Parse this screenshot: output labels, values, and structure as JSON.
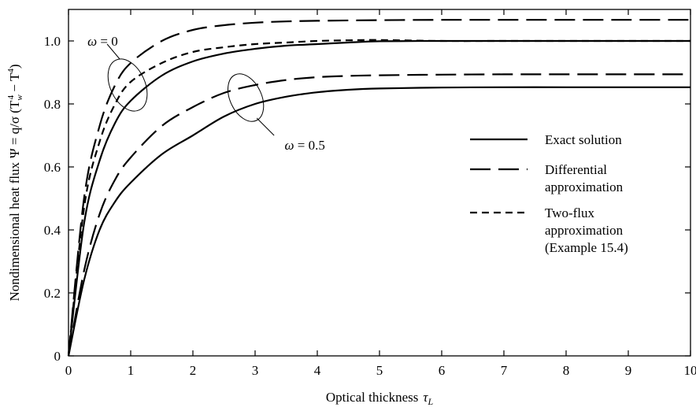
{
  "chart_data": {
    "type": "line",
    "xlabel": "Optical thickness",
    "xlabel_symbol": "τ",
    "xlabel_sub": "L",
    "ylabel_text": "Nondimensional heat flux",
    "ylabel_formula": "Ψ = q/σ (T",
    "ylabel_sub_w": "w",
    "ylabel_sup": "4",
    "ylabel_minus": " − T",
    "ylabel_close": ")",
    "xlim": [
      0,
      10
    ],
    "ylim": [
      0,
      1.1
    ],
    "x_ticks": [
      0,
      1,
      2,
      3,
      4,
      5,
      6,
      7,
      8,
      9,
      10
    ],
    "x_tick_labels": [
      "0",
      "1",
      "2",
      "3",
      "4",
      "5",
      "6",
      "7",
      "8",
      "9",
      "10"
    ],
    "y_ticks": [
      0,
      0.2,
      0.4,
      0.6,
      0.8,
      1.0
    ],
    "y_tick_labels": [
      "0",
      "0.2",
      "0.4",
      "0.6",
      "0.8",
      "1.0"
    ],
    "grid": false,
    "legend_position": "right",
    "series": [
      {
        "name": "Exact solution",
        "style": "solid",
        "group": "ω = 0",
        "x": [
          0,
          0.25,
          0.5,
          0.75,
          1,
          1.5,
          2,
          2.5,
          3,
          3.5,
          4,
          4.5,
          5,
          6,
          7,
          8,
          9,
          10
        ],
        "y": [
          0,
          0.42,
          0.62,
          0.74,
          0.81,
          0.89,
          0.935,
          0.96,
          0.975,
          0.985,
          0.99,
          0.995,
          0.999,
          1.0,
          1.0,
          1.0,
          1.0,
          1.0
        ]
      },
      {
        "name": "Differential approximation",
        "style": "long-dash",
        "group": "ω = 0",
        "x": [
          0,
          0.25,
          0.5,
          0.75,
          1,
          1.5,
          2,
          2.5,
          3,
          3.5,
          4,
          5,
          6,
          7,
          8,
          9,
          10
        ],
        "y": [
          0,
          0.5,
          0.73,
          0.86,
          0.93,
          1.0,
          1.035,
          1.05,
          1.058,
          1.062,
          1.064,
          1.066,
          1.067,
          1.067,
          1.067,
          1.067,
          1.067
        ]
      },
      {
        "name": "Two-flux approximation (Example 15.4)",
        "style": "short-dash",
        "group": "ω = 0",
        "x": [
          0,
          0.25,
          0.5,
          0.75,
          1,
          1.5,
          2,
          2.5,
          3,
          3.5,
          4,
          4.5,
          5,
          6,
          7,
          8,
          9,
          10
        ],
        "y": [
          0,
          0.47,
          0.68,
          0.8,
          0.87,
          0.93,
          0.965,
          0.98,
          0.99,
          0.995,
          1.0,
          1.002,
          1.003,
          1.0,
          1.0,
          1.0,
          1.0,
          1.0
        ]
      },
      {
        "name": "Exact solution",
        "style": "solid",
        "group": "ω = 0.5",
        "x": [
          0,
          0.25,
          0.5,
          0.75,
          1,
          1.5,
          2,
          2.5,
          3,
          3.5,
          4,
          4.5,
          5,
          6,
          7,
          8,
          9,
          10
        ],
        "y": [
          0,
          0.24,
          0.4,
          0.49,
          0.55,
          0.64,
          0.7,
          0.76,
          0.8,
          0.823,
          0.837,
          0.845,
          0.849,
          0.852,
          0.853,
          0.853,
          0.853,
          0.853
        ]
      },
      {
        "name": "Differential approximation",
        "style": "long-dash",
        "group": "ω = 0.5",
        "x": [
          0,
          0.25,
          0.5,
          0.75,
          1,
          1.5,
          2,
          2.5,
          3,
          3.5,
          4,
          4.5,
          5,
          6,
          7,
          8,
          9,
          10
        ],
        "y": [
          0,
          0.27,
          0.45,
          0.56,
          0.63,
          0.73,
          0.79,
          0.835,
          0.86,
          0.876,
          0.885,
          0.889,
          0.891,
          0.893,
          0.894,
          0.894,
          0.894,
          0.894
        ]
      }
    ],
    "legend": [
      {
        "style": "solid",
        "lines": [
          "Exact solution"
        ]
      },
      {
        "style": "long-dash",
        "lines": [
          "Differential",
          "approximation"
        ]
      },
      {
        "style": "short-dash",
        "lines": [
          "Two-flux",
          "approximation",
          "(Example 15.4)"
        ]
      }
    ],
    "annotations": [
      {
        "label": "ω = 0",
        "ellipse_center": [
          0.95,
          0.86
        ],
        "label_anchor": [
          0.55,
          1.0
        ]
      },
      {
        "label": "ω = 0.5",
        "ellipse_center": [
          2.85,
          0.82
        ],
        "label_anchor": [
          3.8,
          0.67
        ]
      }
    ]
  }
}
